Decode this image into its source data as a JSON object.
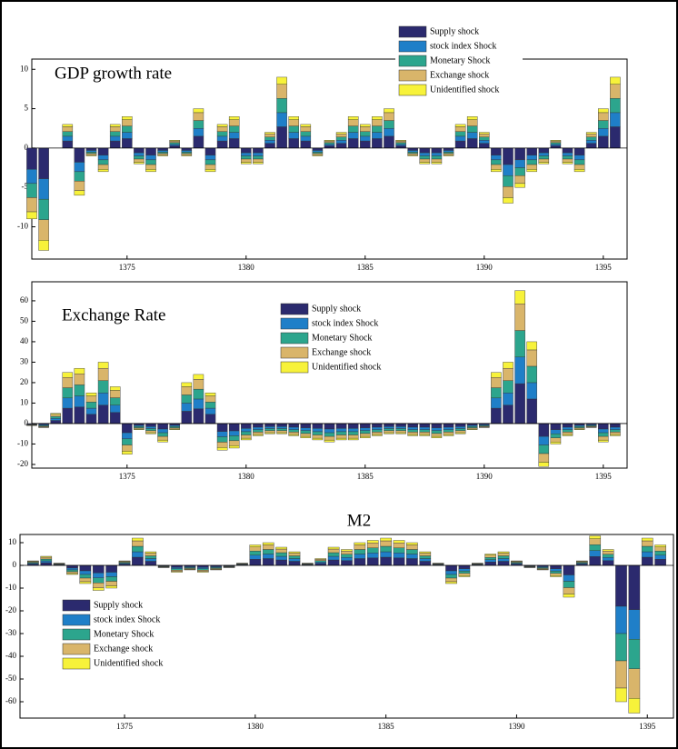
{
  "chart_data": [
    {
      "type": "bar",
      "stacked": true,
      "title": "GDP growth rate",
      "legend": "upper right",
      "x": [
        1371,
        1371.5,
        1372,
        1372.5,
        1373,
        1373.5,
        1374,
        1374.5,
        1375,
        1375.5,
        1376,
        1376.5,
        1377,
        1377.5,
        1378,
        1378.5,
        1379,
        1379.5,
        1380,
        1380.5,
        1381,
        1381.5,
        1382,
        1382.5,
        1383,
        1383.5,
        1384,
        1384.5,
        1385,
        1385.5,
        1386,
        1386.5,
        1387,
        1387.5,
        1388,
        1388.5,
        1389,
        1389.5,
        1390,
        1390.5,
        1391,
        1391.5,
        1392,
        1392.5,
        1393,
        1393.5,
        1394,
        1394.5,
        1395,
        1395.5
      ],
      "xlim": [
        1371,
        1396
      ],
      "xticks": [
        1375,
        1380,
        1385,
        1390,
        1395
      ],
      "ylim": [
        -14.1,
        11.3
      ],
      "yticks": [
        -10,
        -5,
        0,
        5,
        10
      ],
      "series": [
        {
          "name": "Supply shock",
          "color": "#2b2a6e",
          "values": [
            -2.7,
            -3.9,
            0,
            0.9,
            -1.8,
            -0.3,
            -0.9,
            0.9,
            1.2,
            -0.6,
            -0.9,
            -0.3,
            0.3,
            -0.3,
            1.5,
            -0.9,
            0.9,
            1.2,
            -0.6,
            -0.6,
            0.6,
            2.7,
            1.2,
            0.9,
            -0.3,
            0.3,
            0.6,
            1.2,
            0.9,
            1.2,
            1.5,
            0.3,
            -0.3,
            -0.6,
            -0.6,
            -0.3,
            0.9,
            1.2,
            0.6,
            -0.9,
            -2.1,
            -1.5,
            -0.9,
            -0.6,
            0.3,
            -0.6,
            -0.9,
            0.6,
            1.5,
            2.7
          ]
        },
        {
          "name": "stock index Shock",
          "color": "#1f7fc8",
          "values": [
            -1.8,
            -2.6,
            0,
            0.6,
            -1.2,
            -0.2,
            -0.6,
            0.6,
            0.8,
            -0.4,
            -0.6,
            -0.2,
            0.2,
            -0.2,
            1,
            -0.6,
            0.6,
            0.8,
            -0.4,
            -0.4,
            0.4,
            1.8,
            0.8,
            0.6,
            -0.2,
            0.2,
            0.4,
            0.8,
            0.6,
            0.8,
            1,
            0.2,
            -0.2,
            -0.4,
            -0.4,
            -0.2,
            0.6,
            0.8,
            0.4,
            -0.6,
            -1.4,
            -1,
            -0.6,
            -0.4,
            0.2,
            -0.4,
            -0.6,
            0.4,
            1,
            1.8
          ]
        },
        {
          "name": "Monetary Shock",
          "color": "#2ca58d",
          "values": [
            -1.8,
            -2.6,
            0,
            0.6,
            -1.2,
            -0.2,
            -0.6,
            0.6,
            0.8,
            -0.4,
            -0.6,
            -0.2,
            0.2,
            -0.2,
            1,
            -0.6,
            0.6,
            0.8,
            -0.4,
            -0.4,
            0.4,
            1.8,
            0.8,
            0.6,
            -0.2,
            0.2,
            0.4,
            0.8,
            0.6,
            0.8,
            1,
            0.2,
            -0.2,
            -0.4,
            -0.4,
            -0.2,
            0.6,
            0.8,
            0.4,
            -0.6,
            -1.4,
            -1,
            -0.6,
            -0.4,
            0.2,
            -0.4,
            -0.6,
            0.4,
            1,
            1.8
          ]
        },
        {
          "name": "Exchange shock",
          "color": "#d9b56a",
          "values": [
            -1.8,
            -2.6,
            0,
            0.6,
            -1.2,
            -0.2,
            -0.6,
            0.6,
            0.8,
            -0.4,
            -0.6,
            -0.2,
            0.2,
            -0.2,
            1,
            -0.6,
            0.6,
            0.8,
            -0.4,
            -0.4,
            0.4,
            1.8,
            0.8,
            0.6,
            -0.2,
            0.2,
            0.4,
            0.8,
            0.6,
            0.8,
            1,
            0.2,
            -0.2,
            -0.4,
            -0.4,
            -0.2,
            0.6,
            0.8,
            0.4,
            -0.6,
            -1.4,
            -1,
            -0.6,
            -0.4,
            0.2,
            -0.4,
            -0.6,
            0.4,
            1,
            1.8
          ]
        },
        {
          "name": "Unidentified shock",
          "color": "#f7f23a",
          "values": [
            -0.9,
            -1.3,
            0,
            0.3,
            -0.6,
            -0.1,
            -0.3,
            0.3,
            0.4,
            -0.2,
            -0.3,
            -0.1,
            0.1,
            -0.1,
            0.5,
            -0.3,
            0.3,
            0.4,
            -0.2,
            -0.2,
            0.2,
            0.9,
            0.4,
            0.3,
            -0.1,
            0.1,
            0.2,
            0.4,
            0.3,
            0.4,
            0.5,
            0.1,
            -0.1,
            -0.2,
            -0.2,
            -0.1,
            0.3,
            0.4,
            0.2,
            -0.3,
            -0.7,
            -0.5,
            -0.3,
            -0.2,
            0.1,
            -0.2,
            -0.3,
            0.2,
            0.5,
            0.9
          ]
        }
      ]
    },
    {
      "type": "bar",
      "stacked": true,
      "title": "Exchange Rate",
      "legend": "upper center",
      "x": [
        1371,
        1371.5,
        1372,
        1372.5,
        1373,
        1373.5,
        1374,
        1374.5,
        1375,
        1375.5,
        1376,
        1376.5,
        1377,
        1377.5,
        1378,
        1378.5,
        1379,
        1379.5,
        1380,
        1380.5,
        1381,
        1381.5,
        1382,
        1382.5,
        1383,
        1383.5,
        1384,
        1384.5,
        1385,
        1385.5,
        1386,
        1386.5,
        1387,
        1387.5,
        1388,
        1388.5,
        1389,
        1389.5,
        1390,
        1390.5,
        1391,
        1391.5,
        1392,
        1392.5,
        1393,
        1393.5,
        1394,
        1394.5,
        1395,
        1395.5
      ],
      "xlim": [
        1371,
        1396
      ],
      "xticks": [
        1375,
        1380,
        1385,
        1390,
        1395
      ],
      "ylim": [
        -21.8,
        69.3
      ],
      "yticks": [
        -20,
        -10,
        0,
        10,
        20,
        30,
        40,
        50,
        60
      ],
      "series": [
        {
          "name": "Supply shock",
          "color": "#2b2a6e",
          "values": [
            -0.3,
            -0.6,
            1.5,
            7.5,
            8.1,
            4.5,
            9,
            5.4,
            -4.5,
            -0.9,
            -1.5,
            -2.7,
            -0.9,
            6,
            7.2,
            4.5,
            -3.9,
            -3.6,
            -2.4,
            -1.8,
            -1.5,
            -1.5,
            -1.8,
            -2.1,
            -2.4,
            -2.7,
            -2.4,
            -2.4,
            -2.1,
            -1.8,
            -1.5,
            -1.5,
            -1.8,
            -1.8,
            -2.1,
            -1.8,
            -1.5,
            -0.9,
            -0.6,
            7.5,
            9,
            19.5,
            12,
            -6.3,
            -3,
            -1.8,
            -0.9,
            -0.6,
            -2.7,
            -1.8
          ]
        },
        {
          "name": "stock index Shock",
          "color": "#1f7fc8",
          "values": [
            -0.2,
            -0.4,
            1,
            5,
            5.4,
            3,
            6,
            3.6,
            -3,
            -0.6,
            -1,
            -1.8,
            -0.6,
            4,
            4.8,
            3,
            -2.6,
            -2.4,
            -1.6,
            -1.2,
            -1,
            -1,
            -1.2,
            -1.4,
            -1.6,
            -1.8,
            -1.6,
            -1.6,
            -1.4,
            -1.2,
            -1,
            -1,
            -1.2,
            -1.2,
            -1.4,
            -1.2,
            -1,
            -0.6,
            -0.4,
            5,
            6,
            13,
            8,
            -4.2,
            -2,
            -1.2,
            -0.6,
            -0.4,
            -1.8,
            -1.2
          ]
        },
        {
          "name": "Monetary Shock",
          "color": "#2ca58d",
          "values": [
            -0.2,
            -0.4,
            1,
            5,
            5.4,
            3,
            6,
            3.6,
            -3,
            -0.6,
            -1,
            -1.8,
            -0.6,
            4,
            4.8,
            3,
            -2.6,
            -2.4,
            -1.6,
            -1.2,
            -1,
            -1,
            -1.2,
            -1.4,
            -1.6,
            -1.8,
            -1.6,
            -1.6,
            -1.4,
            -1.2,
            -1,
            -1,
            -1.2,
            -1.2,
            -1.4,
            -1.2,
            -1,
            -0.6,
            -0.4,
            5,
            6,
            13,
            8,
            -4.2,
            -2,
            -1.2,
            -0.6,
            -0.4,
            -1.8,
            -1.2
          ]
        },
        {
          "name": "Exchange shock",
          "color": "#d9b56a",
          "values": [
            -0.2,
            -0.4,
            1,
            5,
            5.4,
            3,
            6,
            3.6,
            -3,
            -0.6,
            -1,
            -1.8,
            -0.6,
            4,
            4.8,
            3,
            -2.6,
            -2.4,
            -1.6,
            -1.2,
            -1,
            -1,
            -1.2,
            -1.4,
            -1.6,
            -1.8,
            -1.6,
            -1.6,
            -1.4,
            -1.2,
            -1,
            -1,
            -1.2,
            -1.2,
            -1.4,
            -1.2,
            -1,
            -0.6,
            -0.4,
            5,
            6,
            13,
            8,
            -4.2,
            -2,
            -1.2,
            -0.6,
            -0.4,
            -1.8,
            -1.2
          ]
        },
        {
          "name": "Unidentified shock",
          "color": "#f7f23a",
          "values": [
            -0.1,
            -0.2,
            0.5,
            2.5,
            2.7,
            1.5,
            3,
            1.8,
            -1.5,
            -0.3,
            -0.5,
            -0.9,
            -0.3,
            2,
            2.4,
            1.5,
            -1.3,
            -1.2,
            -0.8,
            -0.6,
            -0.5,
            -0.5,
            -0.6,
            -0.7,
            -0.8,
            -0.9,
            -0.8,
            -0.8,
            -0.7,
            -0.6,
            -0.5,
            -0.5,
            -0.6,
            -0.6,
            -0.7,
            -0.6,
            -0.5,
            -0.3,
            -0.2,
            2.5,
            3,
            6.5,
            4,
            -2.1,
            -1,
            -0.6,
            -0.3,
            -0.2,
            -0.9,
            -0.6
          ]
        }
      ]
    },
    {
      "type": "bar",
      "stacked": true,
      "title": "M2",
      "legend": "lower left",
      "x": [
        1371,
        1371.5,
        1372,
        1372.5,
        1373,
        1373.5,
        1374,
        1374.5,
        1375,
        1375.5,
        1376,
        1376.5,
        1377,
        1377.5,
        1378,
        1378.5,
        1379,
        1379.5,
        1380,
        1380.5,
        1381,
        1381.5,
        1382,
        1382.5,
        1383,
        1383.5,
        1384,
        1384.5,
        1385,
        1385.5,
        1386,
        1386.5,
        1387,
        1387.5,
        1388,
        1388.5,
        1389,
        1389.5,
        1390,
        1390.5,
        1391,
        1391.5,
        1392,
        1392.5,
        1393,
        1393.5,
        1394,
        1394.5,
        1395,
        1395.5
      ],
      "xlim": [
        1371,
        1396
      ],
      "xticks": [
        1375,
        1380,
        1385,
        1390,
        1395
      ],
      "ylim": [
        -67.2,
        13.6
      ],
      "yticks": [
        -60,
        -50,
        -40,
        -30,
        -20,
        -10,
        0,
        10
      ],
      "series": [
        {
          "name": "Supply shock",
          "color": "#2b2a6e",
          "values": [
            0,
            0.6,
            1.2,
            0.3,
            -1.2,
            -2.4,
            -3.3,
            -3,
            0.6,
            3.6,
            1.8,
            -0.3,
            -0.9,
            -0.6,
            -0.9,
            -0.6,
            -0.3,
            0.3,
            2.7,
            3,
            2.4,
            1.8,
            0.3,
            0.9,
            2.4,
            2.1,
            3,
            3.3,
            3.6,
            3.3,
            3,
            1.8,
            0.3,
            -2.4,
            -1.5,
            0.3,
            1.5,
            1.8,
            0.6,
            -0.3,
            -0.6,
            -1.5,
            -4.2,
            0.6,
            3.9,
            2.1,
            -18,
            -19.5,
            3.6,
            2.7
          ]
        },
        {
          "name": "stock index Shock",
          "color": "#1f7fc8",
          "values": [
            0,
            0.4,
            0.8,
            0.2,
            -0.8,
            -1.6,
            -2.2,
            -2,
            0.4,
            2.4,
            1.2,
            -0.2,
            -0.6,
            -0.4,
            -0.6,
            -0.4,
            -0.2,
            0.2,
            1.8,
            2,
            1.6,
            1.2,
            0.2,
            0.6,
            1.6,
            1.4,
            2,
            2.2,
            2.4,
            2.2,
            2,
            1.2,
            0.2,
            -1.6,
            -1,
            0.2,
            1,
            1.2,
            0.4,
            -0.2,
            -0.4,
            -1,
            -2.8,
            0.4,
            2.6,
            1.4,
            -12,
            -13,
            2.4,
            1.8
          ]
        },
        {
          "name": "Monetary Shock",
          "color": "#2ca58d",
          "values": [
            0,
            0.4,
            0.8,
            0.2,
            -0.8,
            -1.6,
            -2.2,
            -2,
            0.4,
            2.4,
            1.2,
            -0.2,
            -0.6,
            -0.4,
            -0.6,
            -0.4,
            -0.2,
            0.2,
            1.8,
            2,
            1.6,
            1.2,
            0.2,
            0.6,
            1.6,
            1.4,
            2,
            2.2,
            2.4,
            2.2,
            2,
            1.2,
            0.2,
            -1.6,
            -1,
            0.2,
            1,
            1.2,
            0.4,
            -0.2,
            -0.4,
            -1,
            -2.8,
            0.4,
            2.6,
            1.4,
            -12,
            -13,
            2.4,
            1.8
          ]
        },
        {
          "name": "Exchange shock",
          "color": "#d9b56a",
          "values": [
            0,
            0.4,
            0.8,
            0.2,
            -0.8,
            -1.6,
            -2.2,
            -2,
            0.4,
            2.4,
            1.2,
            -0.2,
            -0.6,
            -0.4,
            -0.6,
            -0.4,
            -0.2,
            0.2,
            1.8,
            2,
            1.6,
            1.2,
            0.2,
            0.6,
            1.6,
            1.4,
            2,
            2.2,
            2.4,
            2.2,
            2,
            1.2,
            0.2,
            -1.6,
            -1,
            0.2,
            1,
            1.2,
            0.4,
            -0.2,
            -0.4,
            -1,
            -2.8,
            0.4,
            2.6,
            1.4,
            -12,
            -13,
            2.4,
            1.8
          ]
        },
        {
          "name": "Unidentified shock",
          "color": "#f7f23a",
          "values": [
            0,
            0.2,
            0.4,
            0.1,
            -0.4,
            -0.8,
            -1.1,
            -1,
            0.2,
            1.2,
            0.6,
            -0.1,
            -0.3,
            -0.2,
            -0.3,
            -0.2,
            -0.1,
            0.1,
            0.9,
            1,
            0.8,
            0.6,
            0.1,
            0.3,
            0.8,
            0.7,
            1,
            1.1,
            1.2,
            1.1,
            1,
            0.6,
            0.1,
            -0.8,
            -0.5,
            0.1,
            0.5,
            0.6,
            0.2,
            -0.1,
            -0.2,
            -0.5,
            -1.4,
            0.2,
            1.3,
            0.7,
            -6,
            -6.5,
            1.2,
            0.9
          ]
        }
      ]
    }
  ]
}
